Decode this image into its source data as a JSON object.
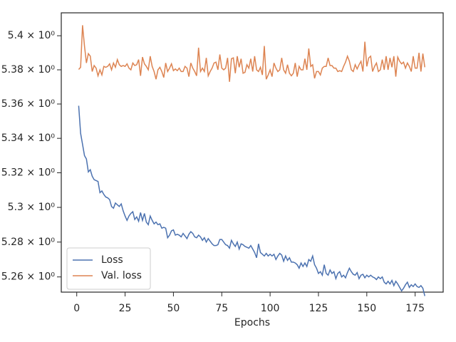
{
  "chart_data": {
    "type": "line",
    "xlabel": "Epochs",
    "x": [
      1,
      2,
      3,
      4,
      5,
      6,
      7,
      8,
      9,
      10,
      11,
      12,
      13,
      14,
      15,
      16,
      17,
      18,
      19,
      20,
      21,
      22,
      23,
      24,
      25,
      26,
      27,
      28,
      29,
      30,
      31,
      32,
      33,
      34,
      35,
      36,
      37,
      38,
      39,
      40,
      41,
      42,
      43,
      44,
      45,
      46,
      47,
      48,
      49,
      50,
      51,
      52,
      53,
      54,
      55,
      56,
      57,
      58,
      59,
      60,
      61,
      62,
      63,
      64,
      65,
      66,
      67,
      68,
      69,
      70,
      71,
      72,
      73,
      74,
      75,
      76,
      77,
      78,
      79,
      80,
      81,
      82,
      83,
      84,
      85,
      86,
      87,
      88,
      89,
      90,
      91,
      92,
      93,
      94,
      95,
      96,
      97,
      98,
      99,
      100,
      101,
      102,
      103,
      104,
      105,
      106,
      107,
      108,
      109,
      110,
      111,
      112,
      113,
      114,
      115,
      116,
      117,
      118,
      119,
      120,
      121,
      122,
      123,
      124,
      125,
      126,
      127,
      128,
      129,
      130,
      131,
      132,
      133,
      134,
      135,
      136,
      137,
      138,
      139,
      140,
      141,
      142,
      143,
      144,
      145,
      146,
      147,
      148,
      149,
      150,
      151,
      152,
      153,
      154,
      155,
      156,
      157,
      158,
      159,
      160,
      161,
      162,
      163,
      164,
      165,
      166,
      167,
      168,
      169,
      170,
      171,
      172,
      173,
      174,
      175,
      176,
      177,
      178,
      179,
      180
    ],
    "series": [
      {
        "name": "Loss",
        "color": "#4c72b0",
        "values": [
          5.359,
          5.3429,
          5.3365,
          5.33,
          5.328,
          5.3205,
          5.3218,
          5.318,
          5.316,
          5.3155,
          5.315,
          5.3085,
          5.3095,
          5.3075,
          5.306,
          5.3055,
          5.3045,
          5.3005,
          5.2995,
          5.3025,
          5.3015,
          5.3005,
          5.302,
          5.298,
          5.295,
          5.2925,
          5.295,
          5.2965,
          5.2975,
          5.293,
          5.2945,
          5.292,
          5.297,
          5.2925,
          5.2965,
          5.2915,
          5.29,
          5.295,
          5.2925,
          5.2905,
          5.2915,
          5.29,
          5.2905,
          5.288,
          5.2885,
          5.288,
          5.2825,
          5.284,
          5.2865,
          5.287,
          5.284,
          5.2845,
          5.284,
          5.283,
          5.285,
          5.2835,
          5.282,
          5.2845,
          5.286,
          5.285,
          5.283,
          5.2825,
          5.284,
          5.283,
          5.281,
          5.2825,
          5.28,
          5.282,
          5.2805,
          5.279,
          5.278,
          5.278,
          5.2785,
          5.2815,
          5.2815,
          5.28,
          5.2785,
          5.278,
          5.2765,
          5.281,
          5.279,
          5.2775,
          5.28,
          5.276,
          5.279,
          5.2785,
          5.2775,
          5.277,
          5.2765,
          5.278,
          5.276,
          5.274,
          5.271,
          5.279,
          5.274,
          5.273,
          5.272,
          5.2735,
          5.272,
          5.273,
          5.272,
          5.273,
          5.27,
          5.272,
          5.2735,
          5.2725,
          5.269,
          5.272,
          5.2695,
          5.271,
          5.2685,
          5.2685,
          5.268,
          5.267,
          5.265,
          5.268,
          5.266,
          5.268,
          5.266,
          5.27,
          5.269,
          5.272,
          5.267,
          5.265,
          5.262,
          5.263,
          5.261,
          5.267,
          5.262,
          5.261,
          5.264,
          5.262,
          5.263,
          5.259,
          5.262,
          5.263,
          5.26,
          5.261,
          5.2595,
          5.2625,
          5.265,
          5.263,
          5.2615,
          5.261,
          5.2625,
          5.259,
          5.261,
          5.2615,
          5.2595,
          5.261,
          5.26,
          5.261,
          5.26,
          5.2595,
          5.2585,
          5.26,
          5.259,
          5.26,
          5.257,
          5.256,
          5.2575,
          5.256,
          5.258,
          5.255,
          5.2575,
          5.256,
          5.254,
          5.252,
          5.2535,
          5.2555,
          5.257,
          5.254,
          5.2555,
          5.2545,
          5.256,
          5.2545,
          5.254,
          5.255,
          5.2535,
          5.2491
        ]
      },
      {
        "name": "Val. loss",
        "color": "#dd8452",
        "values": [
          5.3802,
          5.3815,
          5.4062,
          5.394,
          5.384,
          5.3895,
          5.388,
          5.379,
          5.3825,
          5.381,
          5.3765,
          5.38,
          5.377,
          5.382,
          5.3815,
          5.382,
          5.3835,
          5.38,
          5.384,
          5.3815,
          5.386,
          5.383,
          5.382,
          5.3825,
          5.382,
          5.3835,
          5.381,
          5.38,
          5.384,
          5.3825,
          5.383,
          5.386,
          5.3765,
          5.3875,
          5.3835,
          5.382,
          5.38,
          5.388,
          5.382,
          5.379,
          5.3745,
          5.38,
          5.3815,
          5.379,
          5.3755,
          5.384,
          5.379,
          5.381,
          5.3835,
          5.3795,
          5.3805,
          5.3795,
          5.381,
          5.379,
          5.379,
          5.382,
          5.381,
          5.376,
          5.384,
          5.381,
          5.379,
          5.3765,
          5.393,
          5.379,
          5.381,
          5.379,
          5.387,
          5.3765,
          5.379,
          5.381,
          5.384,
          5.3845,
          5.38,
          5.389,
          5.381,
          5.38,
          5.381,
          5.387,
          5.373,
          5.3865,
          5.387,
          5.378,
          5.388,
          5.3815,
          5.3865,
          5.378,
          5.3785,
          5.383,
          5.381,
          5.3865,
          5.379,
          5.388,
          5.38,
          5.379,
          5.3815,
          5.377,
          5.394,
          5.3745,
          5.377,
          5.38,
          5.376,
          5.384,
          5.381,
          5.379,
          5.38,
          5.387,
          5.38,
          5.378,
          5.383,
          5.378,
          5.3765,
          5.378,
          5.384,
          5.376,
          5.382,
          5.38,
          5.38,
          5.3865,
          5.38,
          5.3925,
          5.382,
          5.383,
          5.375,
          5.379,
          5.379,
          5.377,
          5.381,
          5.382,
          5.382,
          5.387,
          5.3825,
          5.3825,
          5.381,
          5.381,
          5.379,
          5.3795,
          5.379,
          5.382,
          5.3845,
          5.388,
          5.385,
          5.38,
          5.379,
          5.383,
          5.3805,
          5.383,
          5.385,
          5.379,
          5.3965,
          5.382,
          5.387,
          5.388,
          5.379,
          5.382,
          5.384,
          5.379,
          5.38,
          5.386,
          5.38,
          5.388,
          5.38,
          5.387,
          5.3815,
          5.388,
          5.376,
          5.3875,
          5.385,
          5.3835,
          5.3845,
          5.381,
          5.384,
          5.382,
          5.379,
          5.388,
          5.381,
          5.381,
          5.39,
          5.379,
          5.3895,
          5.3815
        ]
      }
    ],
    "xlim": [
      -8,
      189.5
    ],
    "xticks": [
      0,
      25,
      50,
      75,
      100,
      125,
      150,
      175
    ],
    "ylim": [
      5.2513,
      5.4135
    ],
    "yscale": "log",
    "yticks": [
      {
        "value": 5.26,
        "label": "5.26 × 10⁰"
      },
      {
        "value": 5.28,
        "label": "5.28 × 10⁰"
      },
      {
        "value": 5.3,
        "label": "5.3 × 10⁰"
      },
      {
        "value": 5.32,
        "label": "5.32 × 10⁰"
      },
      {
        "value": 5.34,
        "label": "5.34 × 10⁰"
      },
      {
        "value": 5.36,
        "label": "5.36 × 10⁰"
      },
      {
        "value": 5.38,
        "label": "5.38 × 10⁰"
      },
      {
        "value": 5.4,
        "label": "5.4 × 10⁰"
      }
    ],
    "grid": false,
    "legend": "lower left"
  }
}
